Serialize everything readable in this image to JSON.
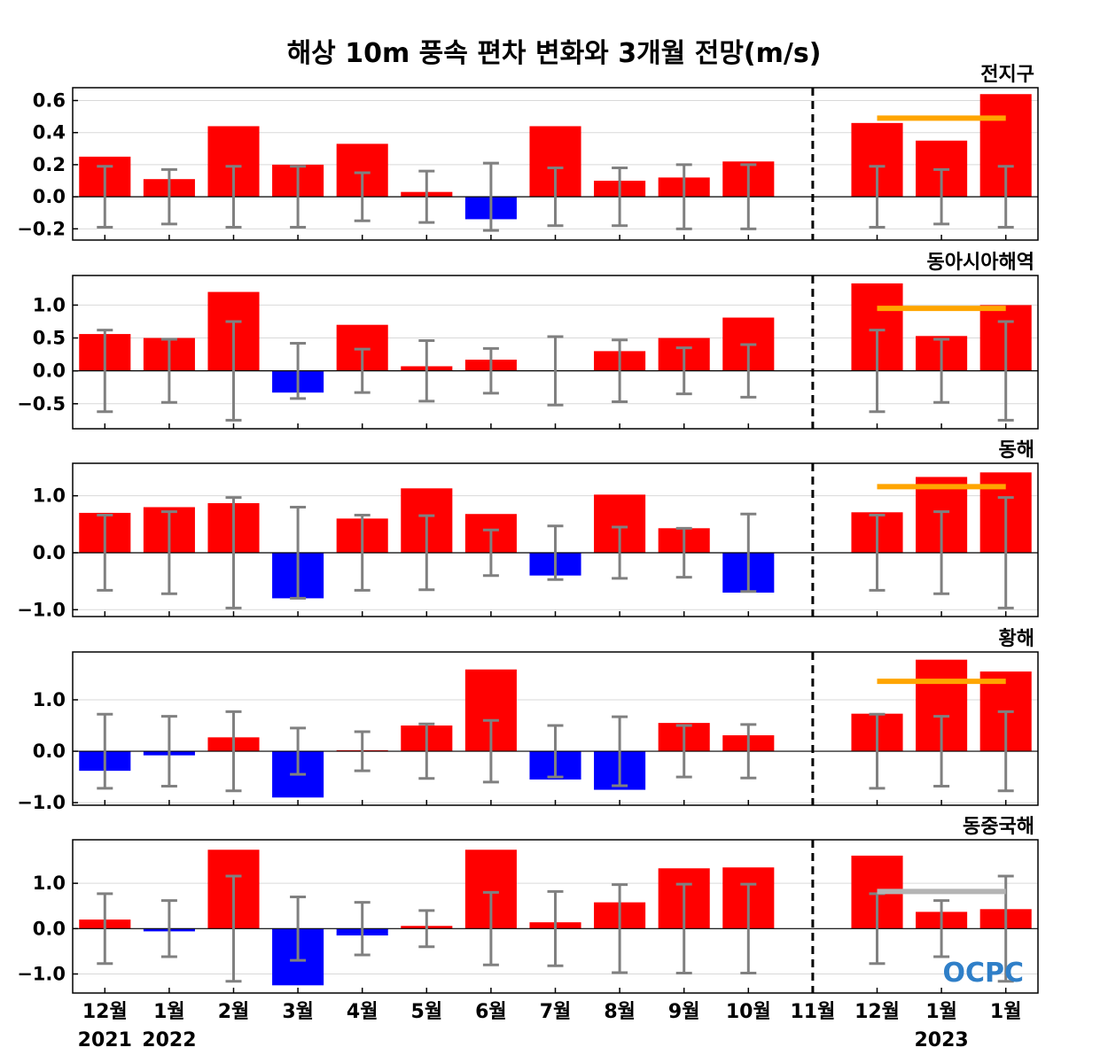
{
  "title": "해상 10m 풍속 편차 변화와 3개월 전망(m/s)",
  "logo": "OCPC",
  "colors": {
    "positive": "#ff0000",
    "negative": "#0000ff",
    "errorbar": "#808080",
    "forecast_above": "#ffa500",
    "forecast_normal": "#b4b4b4"
  },
  "chart_data": [
    {
      "type": "bar",
      "region": "전지구",
      "categories": [
        "12월",
        "1월",
        "2월",
        "3월",
        "4월",
        "5월",
        "6월",
        "7월",
        "8월",
        "9월",
        "10월",
        "11월",
        "12월",
        "1월",
        "1월"
      ],
      "values": [
        0.25,
        0.11,
        0.44,
        0.2,
        0.33,
        0.03,
        -0.14,
        0.44,
        0.1,
        0.12,
        0.22,
        0.0,
        0.46,
        0.35,
        0.64
      ],
      "errors": [
        0.19,
        0.17,
        0.19,
        0.19,
        0.15,
        0.16,
        0.21,
        0.18,
        0.18,
        0.2,
        0.2,
        0.0,
        0.19,
        0.17,
        0.19
      ],
      "forecast_line": {
        "value": 0.49,
        "color": "orange"
      },
      "ylim": [
        -0.27,
        0.68
      ],
      "yticks": [
        -0.2,
        0.0,
        0.2,
        0.4,
        0.6
      ],
      "ytick_labels": [
        "−0.2",
        "0.0",
        "0.2",
        "0.4",
        "0.6"
      ],
      "divider_after": "10월",
      "grid": true
    },
    {
      "type": "bar",
      "region": "동아시아해역",
      "categories": [
        "12월",
        "1월",
        "2월",
        "3월",
        "4월",
        "5월",
        "6월",
        "7월",
        "8월",
        "9월",
        "10월",
        "11월",
        "12월",
        "1월",
        "1월"
      ],
      "values": [
        0.56,
        0.5,
        1.2,
        -0.33,
        0.7,
        0.07,
        0.17,
        0.0,
        0.3,
        0.5,
        0.81,
        0.0,
        1.33,
        0.53,
        1.0
      ],
      "errors": [
        0.62,
        0.48,
        0.75,
        0.42,
        0.33,
        0.46,
        0.34,
        0.52,
        0.47,
        0.35,
        0.4,
        0.0,
        0.62,
        0.48,
        0.75
      ],
      "forecast_line": {
        "value": 0.95,
        "color": "orange"
      },
      "ylim": [
        -0.88,
        1.45
      ],
      "yticks": [
        -0.5,
        0.0,
        0.5,
        1.0
      ],
      "ytick_labels": [
        "−0.5",
        "0.0",
        "0.5",
        "1.0"
      ],
      "divider_after": "10월",
      "grid": true
    },
    {
      "type": "bar",
      "region": "동해",
      "categories": [
        "12월",
        "1월",
        "2월",
        "3월",
        "4월",
        "5월",
        "6월",
        "7월",
        "8월",
        "9월",
        "10월",
        "11월",
        "12월",
        "1월",
        "1월"
      ],
      "values": [
        0.7,
        0.8,
        0.87,
        -0.8,
        0.6,
        1.13,
        0.68,
        -0.4,
        1.02,
        0.43,
        -0.7,
        0.0,
        0.71,
        1.33,
        1.41
      ],
      "errors": [
        0.66,
        0.72,
        0.97,
        0.8,
        0.66,
        0.65,
        0.4,
        0.47,
        0.45,
        0.43,
        0.68,
        0.0,
        0.66,
        0.72,
        0.97
      ],
      "forecast_line": {
        "value": 1.16,
        "color": "orange"
      },
      "ylim": [
        -1.12,
        1.57
      ],
      "yticks": [
        -1.0,
        0.0,
        1.0
      ],
      "ytick_labels": [
        "−1.0",
        "0.0",
        "1.0"
      ],
      "divider_after": "10월",
      "grid": true
    },
    {
      "type": "bar",
      "region": "황해",
      "categories": [
        "12월",
        "1월",
        "2월",
        "3월",
        "4월",
        "5월",
        "6월",
        "7월",
        "8월",
        "9월",
        "10월",
        "11월",
        "12월",
        "1월",
        "1월"
      ],
      "values": [
        -0.38,
        -0.08,
        0.27,
        -0.9,
        0.02,
        0.5,
        1.59,
        -0.55,
        -0.75,
        0.55,
        0.31,
        0.0,
        0.73,
        1.78,
        1.55
      ],
      "errors": [
        0.72,
        0.68,
        0.77,
        0.45,
        0.38,
        0.53,
        0.6,
        0.5,
        0.67,
        0.5,
        0.52,
        0.0,
        0.72,
        0.68,
        0.77
      ],
      "forecast_line": {
        "value": 1.36,
        "color": "orange"
      },
      "ylim": [
        -1.05,
        1.93
      ],
      "yticks": [
        -1.0,
        0.0,
        1.0
      ],
      "ytick_labels": [
        "−1.0",
        "0.0",
        "1.0"
      ],
      "divider_after": "10월",
      "grid": true
    },
    {
      "type": "bar",
      "region": "동중국해",
      "categories": [
        "12월",
        "1월",
        "2월",
        "3월",
        "4월",
        "5월",
        "6월",
        "7월",
        "8월",
        "9월",
        "10월",
        "11월",
        "12월",
        "1월",
        "1월"
      ],
      "values": [
        0.2,
        -0.06,
        1.74,
        -1.25,
        -0.15,
        0.06,
        1.74,
        0.14,
        0.58,
        1.33,
        1.35,
        0.0,
        1.61,
        0.37,
        0.43
      ],
      "errors": [
        0.77,
        0.62,
        1.16,
        0.7,
        0.58,
        0.4,
        0.8,
        0.82,
        0.97,
        0.98,
        0.98,
        0.0,
        0.77,
        0.62,
        1.16
      ],
      "forecast_line": {
        "value": 0.82,
        "color": "gray"
      },
      "ylim": [
        -1.42,
        1.96
      ],
      "yticks": [
        -1.0,
        0.0,
        1.0
      ],
      "ytick_labels": [
        "−1.0",
        "0.0",
        "1.0"
      ],
      "divider_after": "10월",
      "grid": true
    }
  ],
  "x_axis": {
    "month_labels": [
      "12월",
      "1월",
      "2월",
      "3월",
      "4월",
      "5월",
      "6월",
      "7월",
      "8월",
      "9월",
      "10월",
      "11월",
      "12월",
      "1월",
      "1월"
    ],
    "year_labels": [
      {
        "text": "2021",
        "index": 0
      },
      {
        "text": "2022",
        "index": 1
      },
      {
        "text": "2023",
        "index": 13
      }
    ]
  }
}
